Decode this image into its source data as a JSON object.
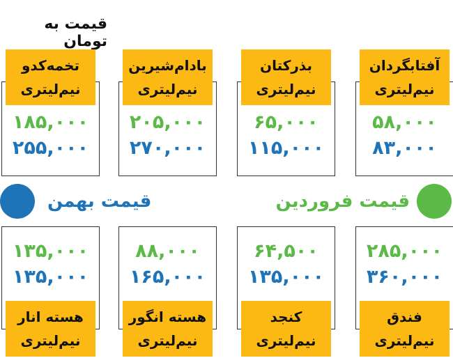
{
  "title": "قیمت به تومان",
  "colors": {
    "label_bg": "#fdb913",
    "farvardin": "#5ab947",
    "bahman": "#1f73b7"
  },
  "legend": {
    "farvardin": "قیمت فروردین",
    "bahman": "قیمت بهمن"
  },
  "top_row": [
    {
      "name": "آفتابگردان",
      "unit": "نیم‌لیتری",
      "farvardin": "۵۸,۰۰۰",
      "bahman": "۸۳,۰۰۰"
    },
    {
      "name": "بذرکتان",
      "unit": "نیم‌لیتری",
      "farvardin": "۶۵,۰۰۰",
      "bahman": "۱۱۵,۰۰۰"
    },
    {
      "name": "بادام‌شیرین",
      "unit": "نیم‌لیتری",
      "farvardin": "۲۰۵,۰۰۰",
      "bahman": "۲۷۰,۰۰۰"
    },
    {
      "name": "تخمه‌کدو",
      "unit": "نیم‌لیتری",
      "farvardin": "۱۸۵,۰۰۰",
      "bahman": "۲۵۵,۰۰۰"
    }
  ],
  "bottom_row": [
    {
      "name": "فندق",
      "unit": "نیم‌لیتری",
      "farvardin": "۲۸۵,۰۰۰",
      "bahman": "۳۶۰,۰۰۰"
    },
    {
      "name": "کنجد",
      "unit": "نیم‌لیتری",
      "farvardin": "۶۴,۵۰۰",
      "bahman": "۱۳۵,۰۰۰"
    },
    {
      "name": "هسته انگور",
      "unit": "نیم‌لیتری",
      "farvardin": "۸۸,۰۰۰",
      "bahman": "۱۶۵,۰۰۰"
    },
    {
      "name": "هسته انار",
      "unit": "نیم‌لیتری",
      "farvardin": "۱۳۵,۰۰۰",
      "bahman": "۱۳۵,۰۰۰"
    }
  ]
}
